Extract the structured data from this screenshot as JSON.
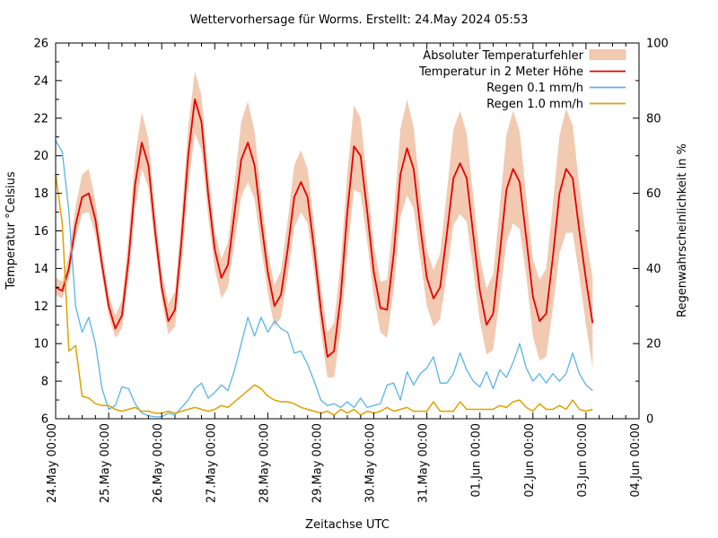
{
  "title": "Wettervorhersage für Worms. Erstellt: 24.May 2024 05:53",
  "axes": {
    "x_label": "Zeitachse UTC",
    "y_left_label": "Temperatur °Celsius",
    "y_right_label": "Regenwahrscheinlichkeit in %",
    "x_tick_labels": [
      "24.May 00:00",
      "25.May 00:00",
      "26.May 00:00",
      "27.May 00:00",
      "28.May 00:00",
      "29.May 00:00",
      "30.May 00:00",
      "31.May 00:00",
      "01.Jun 00:00",
      "02.Jun 00:00",
      "03.Jun 00:00",
      "04.Jun 00:00"
    ],
    "y_left_ticks": [
      6,
      8,
      10,
      12,
      14,
      16,
      18,
      20,
      22,
      24,
      26
    ],
    "y_right_ticks": [
      0,
      20,
      40,
      60,
      80,
      100
    ]
  },
  "legend": [
    {
      "label": "Absoluter Temperaturfehler",
      "type": "band",
      "color": "#f2c9b1"
    },
    {
      "label": "Temperatur in 2 Meter Höhe",
      "type": "line",
      "color": "#e60000"
    },
    {
      "label": "Regen 0.1 mm/h",
      "type": "line",
      "color": "#58b4e8"
    },
    {
      "label": "Regen 1.0 mm/h",
      "type": "line",
      "color": "#dfa000"
    }
  ],
  "colors": {
    "temperature": "#e60000",
    "error_band": "#f2c9b1",
    "rain01": "#58b4e8",
    "rain10": "#dfa000",
    "frame": "#000000"
  },
  "chart_data": {
    "type": "line",
    "title": "Wettervorhersage für Worms. Erstellt: 24.May 2024 05:53",
    "xlabel": "Zeitachse UTC",
    "ylabel_left": "Temperatur °Celsius",
    "ylabel_right": "Regenwahrscheinlichkeit in %",
    "x_unit": "hours since 24.May 2024 00:00 UTC",
    "x_step_hours": 3,
    "x_axis_range_days": [
      0,
      11
    ],
    "y_left_range": [
      6,
      26
    ],
    "y_right_range": [
      0,
      100
    ],
    "grid": false,
    "legend_position": "top-right-inside",
    "series": [
      {
        "name": "Temperatur in 2 Meter Höhe",
        "axis": "left",
        "unit": "°C",
        "values": [
          13.0,
          12.8,
          14.0,
          16.3,
          17.8,
          18.0,
          16.6,
          14.2,
          12.0,
          10.8,
          11.5,
          14.5,
          18.5,
          20.7,
          19.5,
          16.0,
          13.0,
          11.2,
          11.8,
          15.5,
          20.0,
          23.0,
          21.8,
          18.0,
          15.0,
          13.5,
          14.2,
          17.0,
          19.8,
          20.7,
          19.5,
          16.5,
          13.8,
          12.0,
          12.6,
          15.0,
          17.8,
          18.6,
          17.8,
          15.0,
          11.8,
          9.3,
          9.6,
          12.5,
          17.0,
          20.5,
          20.0,
          17.0,
          13.8,
          11.9,
          11.8,
          14.8,
          19.0,
          20.4,
          19.3,
          16.2,
          13.5,
          12.4,
          13.0,
          15.8,
          18.8,
          19.6,
          18.8,
          15.8,
          12.8,
          11.0,
          11.6,
          14.8,
          18.2,
          19.3,
          18.6,
          15.6,
          12.5,
          11.2,
          11.6,
          14.6,
          18.0,
          19.3,
          18.8,
          16.0,
          13.4,
          11.1
        ]
      },
      {
        "name": "Absoluter Temperaturfehler (obere Grenze)",
        "axis": "left",
        "unit": "°C",
        "values": [
          13.5,
          13.3,
          14.7,
          17.3,
          19.0,
          19.3,
          17.6,
          14.9,
          12.6,
          11.5,
          12.3,
          15.7,
          20.0,
          22.3,
          20.9,
          17.0,
          13.8,
          12.1,
          12.8,
          16.8,
          21.5,
          24.5,
          23.2,
          19.2,
          16.0,
          14.5,
          15.4,
          18.6,
          21.8,
          22.9,
          21.3,
          17.9,
          14.9,
          13.1,
          13.9,
          16.5,
          19.5,
          20.3,
          19.3,
          16.3,
          13.0,
          10.6,
          11.1,
          14.3,
          19.1,
          22.7,
          22.0,
          18.6,
          15.2,
          13.3,
          13.4,
          16.8,
          21.4,
          23.0,
          21.5,
          18.0,
          15.0,
          13.9,
          14.8,
          18.0,
          21.4,
          22.4,
          21.2,
          17.8,
          14.6,
          12.9,
          13.7,
          17.3,
          21.1,
          22.4,
          21.3,
          17.8,
          14.5,
          13.4,
          14.0,
          17.4,
          21.1,
          22.5,
          21.6,
          18.4,
          15.7,
          13.5
        ]
      },
      {
        "name": "Absoluter Temperaturfehler (untere Grenze)",
        "axis": "left",
        "unit": "°C",
        "values": [
          12.6,
          12.4,
          13.5,
          15.6,
          16.9,
          17.0,
          15.8,
          13.6,
          11.5,
          10.3,
          10.8,
          13.5,
          17.2,
          19.3,
          18.3,
          15.1,
          12.3,
          10.5,
          10.9,
          14.2,
          18.3,
          21.2,
          20.3,
          16.8,
          14.0,
          12.4,
          13.0,
          15.4,
          17.8,
          18.6,
          17.7,
          15.1,
          12.7,
          10.9,
          11.4,
          13.6,
          16.2,
          17.0,
          16.4,
          13.8,
          10.7,
          8.2,
          8.2,
          10.7,
          14.8,
          18.2,
          18.0,
          15.4,
          12.5,
          10.6,
          10.3,
          12.9,
          16.7,
          17.9,
          17.2,
          14.5,
          12.0,
          10.9,
          11.3,
          13.7,
          16.3,
          16.9,
          16.5,
          13.9,
          11.2,
          9.4,
          9.7,
          12.4,
          15.4,
          16.4,
          16.1,
          13.6,
          10.4,
          9.1,
          9.3,
          11.9,
          14.8,
          15.9,
          15.9,
          13.6,
          11.0,
          8.7
        ]
      },
      {
        "name": "Regen 0.1 mm/h",
        "axis": "right",
        "unit": "%",
        "values": [
          74,
          71,
          55,
          30,
          23,
          27,
          20,
          8,
          2.5,
          3.5,
          8.5,
          8,
          4,
          1.5,
          0.8,
          0.5,
          0.5,
          1.5,
          1,
          3,
          5,
          8,
          9.5,
          5.5,
          7,
          9,
          7.5,
          13,
          20,
          27,
          22,
          27,
          23,
          26,
          24,
          23,
          17.5,
          18,
          14.5,
          10,
          5,
          3.5,
          4,
          3,
          4.5,
          3,
          5.5,
          3,
          3.5,
          4,
          9,
          9.5,
          5,
          12.5,
          9,
          12,
          13.5,
          16.5,
          9.5,
          9.5,
          12,
          17.5,
          13,
          10,
          8.5,
          12.5,
          8,
          13,
          11,
          15,
          20,
          13.5,
          10,
          12,
          9.5,
          12,
          10,
          12,
          17.5,
          12,
          9,
          7.5
        ]
      },
      {
        "name": "Regen 1.0 mm/h",
        "axis": "right",
        "unit": "%",
        "values": [
          65,
          52,
          18,
          19.5,
          6,
          5.5,
          4,
          3.5,
          3.5,
          2.5,
          2,
          2.5,
          3,
          2,
          2,
          1.5,
          1.5,
          2,
          1.5,
          2,
          2.5,
          3,
          2.5,
          2,
          2.5,
          3.5,
          3,
          4.5,
          6,
          7.5,
          9,
          8,
          6,
          5,
          4.5,
          4.5,
          4,
          3,
          2.5,
          2,
          1.5,
          2,
          1,
          2.5,
          1.5,
          2.5,
          1,
          2,
          1.5,
          2,
          3,
          2,
          2.5,
          3,
          2,
          2,
          2,
          4.5,
          2,
          2,
          2,
          4.5,
          2.5,
          2.5,
          2.5,
          2.5,
          2.5,
          3.5,
          3,
          4.5,
          5,
          3,
          2,
          4,
          2.5,
          2.5,
          3.5,
          2.5,
          5,
          2.5,
          2,
          2.5
        ]
      }
    ]
  }
}
